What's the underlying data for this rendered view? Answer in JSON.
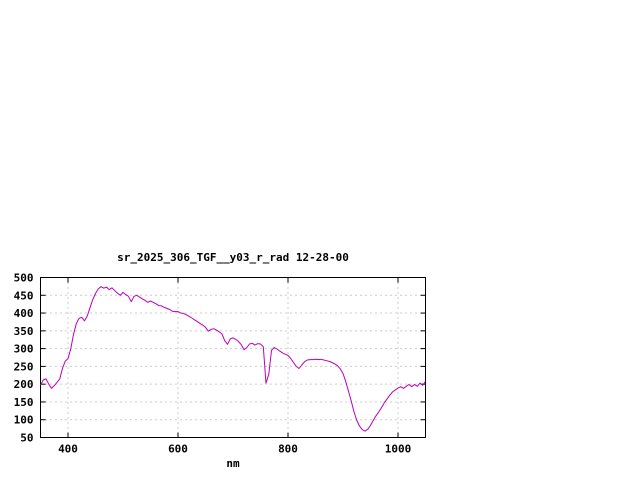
{
  "page": {
    "background_color": "#ffffff"
  },
  "chart_data": {
    "type": "line",
    "title": "sr_2025_306_TGF__y03_r_rad 12-28-00",
    "xlabel": "nm",
    "ylabel": "",
    "xlim": [
      350,
      1050
    ],
    "ylim": [
      50,
      500
    ],
    "xticks": [
      400,
      600,
      800,
      1000
    ],
    "yticks": [
      50,
      100,
      150,
      200,
      250,
      300,
      350,
      400,
      450,
      500
    ],
    "grid": true,
    "legend_position": "none",
    "line_color": "#bb00bb",
    "axis_color": "#000000",
    "grid_color": "#999999",
    "series": [
      {
        "name": "sr_2025_306_TGF__y03_r_rad",
        "x_start": 350,
        "x_step": 5,
        "values": [
          197,
          212,
          215,
          200,
          188,
          196,
          205,
          215,
          245,
          265,
          272,
          300,
          340,
          370,
          385,
          388,
          378,
          392,
          415,
          438,
          455,
          468,
          474,
          470,
          473,
          466,
          471,
          463,
          456,
          450,
          458,
          452,
          447,
          432,
          447,
          450,
          445,
          440,
          436,
          430,
          434,
          430,
          426,
          421,
          420,
          416,
          413,
          410,
          405,
          404,
          404,
          400,
          399,
          395,
          391,
          386,
          381,
          376,
          371,
          366,
          360,
          349,
          354,
          356,
          352,
          347,
          341,
          322,
          312,
          328,
          330,
          326,
          320,
          311,
          297,
          303,
          313,
          315,
          310,
          314,
          313,
          305,
          203,
          228,
          295,
          303,
          299,
          293,
          288,
          284,
          281,
          272,
          261,
          250,
          244,
          254,
          263,
          268,
          269,
          269,
          270,
          269,
          270,
          268,
          266,
          264,
          261,
          257,
          252,
          243,
          230,
          207,
          180,
          152,
          122,
          98,
          82,
          72,
          68,
          73,
          84,
          98,
          111,
          122,
          134,
          148,
          158,
          169,
          178,
          184,
          189,
          193,
          188,
          194,
          199,
          193,
          199,
          194,
          203,
          197,
          208
        ]
      }
    ]
  }
}
